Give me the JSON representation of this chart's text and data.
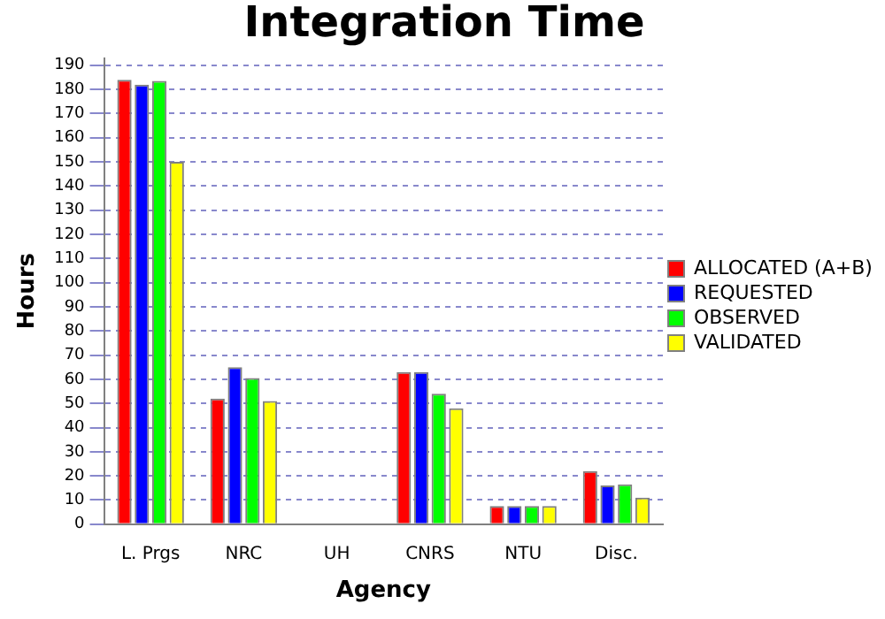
{
  "chart_data": {
    "type": "bar",
    "title": "Integration Time",
    "xlabel": "Agency",
    "ylabel": "Hours",
    "categories": [
      "L. Prgs",
      "NRC",
      "UH",
      "CNRS",
      "NTU",
      "Disc."
    ],
    "series": [
      {
        "name": "ALLOCATED (A+B)",
        "color": "#ff0000",
        "values": [
          184,
          52,
          0,
          63,
          7.5,
          22
        ]
      },
      {
        "name": "REQUESTED",
        "color": "#0000ff",
        "values": [
          182,
          65,
          0,
          63,
          7.5,
          16
        ]
      },
      {
        "name": "OBSERVED",
        "color": "#00ff00",
        "values": [
          183.5,
          60.5,
          0,
          54,
          7.5,
          16.5
        ]
      },
      {
        "name": "VALIDATED",
        "color": "#ffff00",
        "values": [
          150,
          51,
          0,
          48,
          7.5,
          11
        ]
      }
    ],
    "ylim": [
      0,
      193
    ],
    "yticks": [
      0,
      10,
      20,
      30,
      40,
      50,
      60,
      70,
      80,
      90,
      100,
      110,
      120,
      130,
      140,
      150,
      160,
      170,
      180,
      190
    ],
    "grid": "y",
    "legend": "right"
  }
}
